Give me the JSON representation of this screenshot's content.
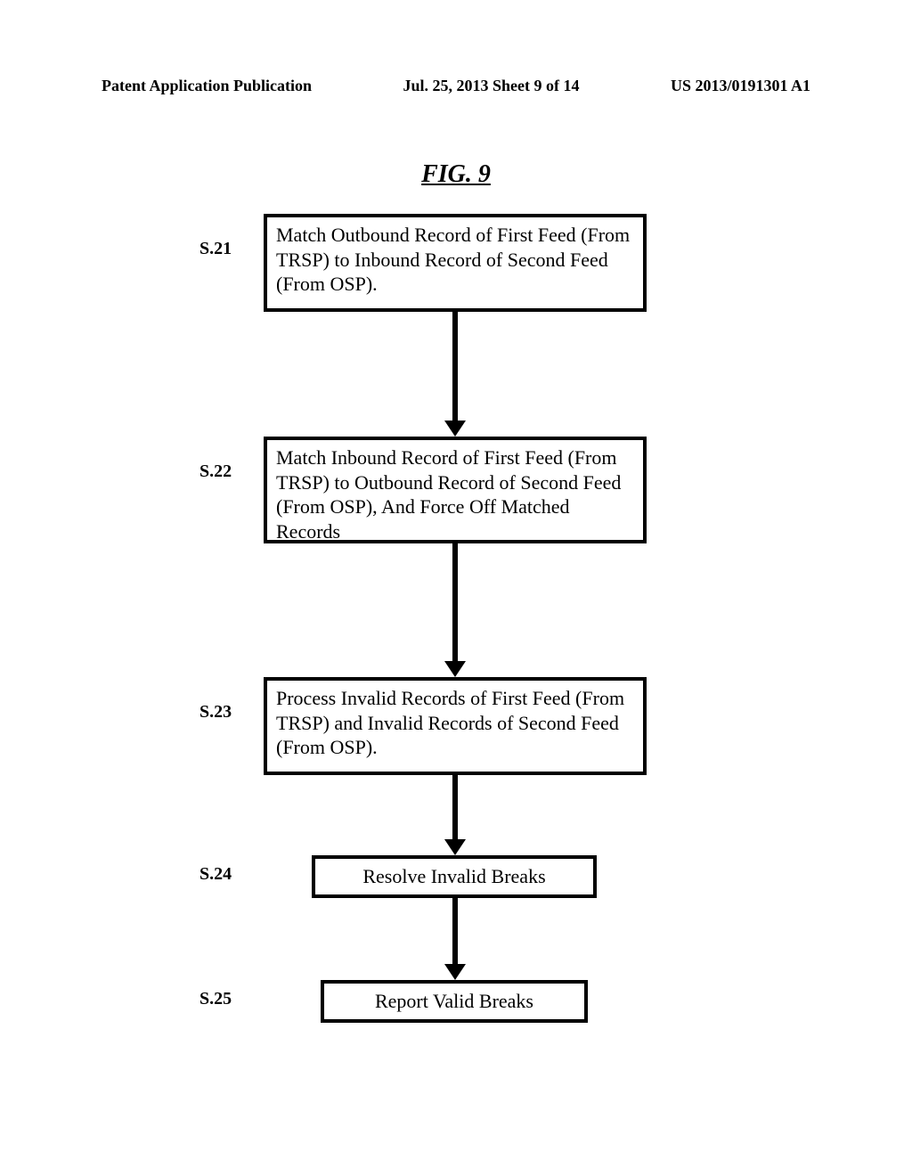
{
  "header": {
    "left": "Patent Application Publication",
    "center": "Jul. 25, 2013  Sheet 9 of 14",
    "right": "US 2013/0191301 A1"
  },
  "figure_title": "FIG. 9",
  "flowchart": {
    "type": "flowchart",
    "background_color": "#ffffff",
    "border_color": "#000000",
    "border_width": 4,
    "arrow_color": "#000000",
    "arrow_width": 6,
    "node_font_size": 22,
    "label_font_size": 20,
    "title_font_size": 28,
    "header_font_size": 18,
    "nodes": [
      {
        "id": "n1",
        "label": "S.21",
        "text": "Match Outbound Record of First Feed (From TRSP) to Inbound Record of Second Feed (From OSP)."
      },
      {
        "id": "n2",
        "label": "S.22",
        "text": "Match Inbound Record of First Feed (From TRSP) to Outbound Record of Second Feed (From OSP), And Force Off Matched Records"
      },
      {
        "id": "n3",
        "label": "S.23",
        "text": "Process Invalid Records of First Feed (From TRSP) and Invalid Records of Second Feed (From OSP)."
      },
      {
        "id": "n4",
        "label": "S.24",
        "text": "Resolve Invalid Breaks"
      },
      {
        "id": "n5",
        "label": "S.25",
        "text": "Report Valid Breaks"
      }
    ],
    "edges": [
      {
        "from": "n1",
        "to": "n2"
      },
      {
        "from": "n2",
        "to": "n3"
      },
      {
        "from": "n3",
        "to": "n4"
      },
      {
        "from": "n4",
        "to": "n5"
      }
    ]
  }
}
